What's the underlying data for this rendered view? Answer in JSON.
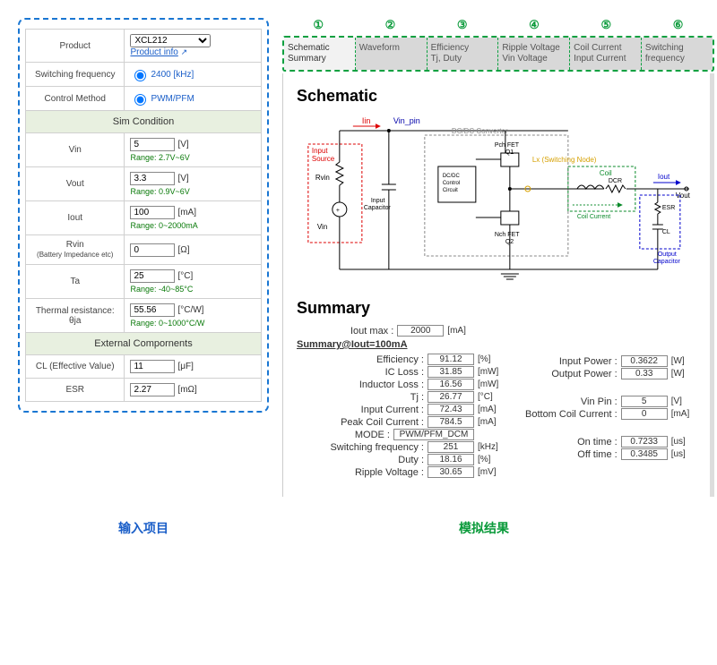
{
  "leftPanel": {
    "productLabel": "Product",
    "productValue": "XCL212",
    "productInfo": "Product info",
    "swFreqLabel": "Switching frequency",
    "swFreqValue": "2400 [kHz]",
    "ctrlLabel": "Control Method",
    "ctrlValue": "PWM/PFM",
    "simCondition": "Sim Condition",
    "vin": {
      "label": "Vin",
      "value": "5",
      "unit": "[V]",
      "range": "Range: 2.7V~6V"
    },
    "vout": {
      "label": "Vout",
      "value": "3.3",
      "unit": "[V]",
      "range": "Range: 0.9V~6V"
    },
    "iout": {
      "label": "Iout",
      "value": "100",
      "unit": "[mA]",
      "range": "Range: 0~2000mA"
    },
    "rvin": {
      "label": "Rvin",
      "sublabel": "(Battery Impedance etc)",
      "value": "0",
      "unit": "[Ω]"
    },
    "ta": {
      "label": "Ta",
      "value": "25",
      "unit": "[°C]",
      "range": "Range: -40~85°C"
    },
    "theta": {
      "label": "Thermal resistance: θja",
      "value": "55.56",
      "unit": "[°C/W]",
      "range": "Range: 0~1000°C/W"
    },
    "extComp": "External Compornents",
    "cl": {
      "label": "CL (Effective Value)",
      "value": "11",
      "unit": "[μF]"
    },
    "esr": {
      "label": "ESR",
      "value": "2.27",
      "unit": "[mΩ]"
    }
  },
  "tabNumbers": [
    "①",
    "②",
    "③",
    "④",
    "⑤",
    "⑥"
  ],
  "tabs": [
    {
      "l1": "Schematic",
      "l2": "Summary"
    },
    {
      "l1": "Waveform",
      "l2": ""
    },
    {
      "l1": "Efficiency",
      "l2": "Tj, Duty"
    },
    {
      "l1": "Ripple Voltage",
      "l2": "Vin Voltage"
    },
    {
      "l1": "Coil Current",
      "l2": "Input Current"
    },
    {
      "l1": "Switching",
      "l2": "frequency"
    }
  ],
  "schematic": {
    "heading": "Schematic",
    "labels": {
      "iin": "Iin",
      "vinpin": "Vin_pin",
      "inputSource": "Input\nSource",
      "rvin": "Rvin",
      "vin": "Vin",
      "inputCap": "Input\nCapacitor",
      "dcdc": "DC/DC Converter",
      "pch": "Pch FET\nQ1",
      "nch": "Nch FET\nQ2",
      "ctrl": "DC/DC\nControl\nCircuit",
      "lx": "Lx (Switching Node)",
      "coil": "Coil",
      "dcr": "DCR",
      "coilCurrent": "Coil Current",
      "iout": "Iout",
      "vout": "Vout",
      "esr": "ESR",
      "cl": "CL",
      "outCap": "Output\nCapacitor"
    }
  },
  "summary": {
    "heading": "Summary",
    "ioutMax": {
      "label": "Iout max :",
      "value": "2000",
      "unit": "[mA]"
    },
    "headline": "Summary@Iout=100mA",
    "left": [
      {
        "label": "Efficiency :",
        "value": "91.12",
        "unit": "[%]"
      },
      {
        "label": "IC Loss :",
        "value": "31.85",
        "unit": "[mW]"
      },
      {
        "label": "Inductor Loss :",
        "value": "16.56",
        "unit": "[mW]"
      },
      {
        "label": "Tj :",
        "value": "26.77",
        "unit": "[°C]"
      },
      {
        "label": "Input Current :",
        "value": "72.43",
        "unit": "[mA]"
      },
      {
        "label": "Peak Coil Current :",
        "value": "784.5",
        "unit": "[mA]"
      },
      {
        "label": "MODE :",
        "value": "PWM/PFM_DCM",
        "unit": "",
        "wide": true
      },
      {
        "label": "Switching frequency :",
        "value": "251",
        "unit": "[kHz]"
      },
      {
        "label": "Duty :",
        "value": "18.16",
        "unit": "[%]"
      },
      {
        "label": "Ripple Voltage :",
        "value": "30.65",
        "unit": "[mV]"
      }
    ],
    "right": [
      {
        "label": "Input Power :",
        "value": "0.3622",
        "unit": "[W]"
      },
      {
        "label": "Output Power :",
        "value": "0.33",
        "unit": "[W]"
      },
      {
        "label": "",
        "value": "",
        "unit": "",
        "blank": true
      },
      {
        "label": "Vin Pin :",
        "value": "5",
        "unit": "[V]"
      },
      {
        "label": "Bottom Coil Current :",
        "value": "0",
        "unit": "[mA]"
      },
      {
        "label": "",
        "value": "",
        "unit": "",
        "blank": true
      },
      {
        "label": "On time :",
        "value": "0.7233",
        "unit": "[us]"
      },
      {
        "label": "Off time :",
        "value": "0.3485",
        "unit": "[us]"
      }
    ]
  },
  "bottom": {
    "left": "输入项目",
    "right": "模拟结果"
  }
}
